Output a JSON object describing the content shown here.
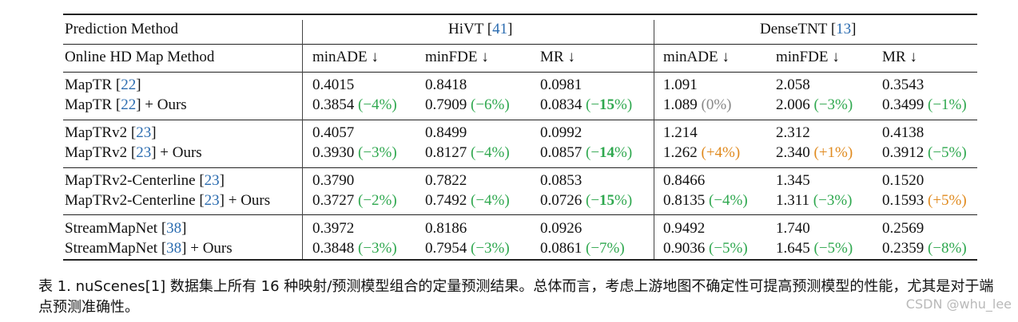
{
  "header": {
    "prediction_method": "Prediction Method",
    "hivt": "HiVT",
    "hivt_cite": "41",
    "densetnt": "DenseTNT",
    "densetnt_cite": "13",
    "online_map_method": "Online HD Map Method",
    "metrics": [
      "minADE ↓",
      "minFDE ↓",
      "MR ↓",
      "minADE ↓",
      "minFDE ↓",
      "MR ↓"
    ]
  },
  "groups": [
    {
      "base": {
        "name": "MapTR",
        "cite": "22",
        "suffix": "",
        "values": [
          "0.4015",
          "0.8418",
          "0.0981",
          "1.091",
          "2.058",
          "0.3543"
        ]
      },
      "ours": {
        "name": "MapTR",
        "cite": "22",
        "suffix": " + Ours",
        "values": [
          "0.3854",
          "0.7909",
          "0.0834",
          "1.089",
          "2.006",
          "0.3499"
        ],
        "deltas": [
          "(−4%)",
          "(−6%)",
          "(−15%)",
          "(0%)",
          "(−3%)",
          "(−1%)"
        ]
      }
    },
    {
      "base": {
        "name": "MapTRv2",
        "cite": "23",
        "suffix": "",
        "values": [
          "0.4057",
          "0.8499",
          "0.0992",
          "1.214",
          "2.312",
          "0.4138"
        ]
      },
      "ours": {
        "name": "MapTRv2",
        "cite": "23",
        "suffix": " + Ours",
        "values": [
          "0.3930",
          "0.8127",
          "0.0857",
          "1.262",
          "2.340",
          "0.3912"
        ],
        "deltas": [
          "(−3%)",
          "(−4%)",
          "(−14%)",
          "(+4%)",
          "(+1%)",
          "(−5%)"
        ]
      }
    },
    {
      "base": {
        "name": "MapTRv2-Centerline",
        "cite": "23",
        "suffix": "",
        "values": [
          "0.3790",
          "0.7822",
          "0.0853",
          "0.8466",
          "1.345",
          "0.1520"
        ]
      },
      "ours": {
        "name": "MapTRv2-Centerline",
        "cite": "23",
        "suffix": " + Ours",
        "values": [
          "0.3727",
          "0.7492",
          "0.0726",
          "0.8135",
          "1.311",
          "0.1593"
        ],
        "deltas": [
          "(−2%)",
          "(−4%)",
          "(−15%)",
          "(−4%)",
          "(−3%)",
          "(+5%)"
        ]
      }
    },
    {
      "base": {
        "name": "StreamMapNet",
        "cite": "38",
        "suffix": "",
        "values": [
          "0.3972",
          "0.8186",
          "0.0926",
          "0.9492",
          "1.740",
          "0.2569"
        ]
      },
      "ours": {
        "name": "StreamMapNet",
        "cite": "38",
        "suffix": " + Ours",
        "values": [
          "0.3848",
          "0.7954",
          "0.0861",
          "0.9036",
          "1.645",
          "0.2359"
        ],
        "deltas": [
          "(−3%)",
          "(−3%)",
          "(−7%)",
          "(−5%)",
          "(−5%)",
          "(−8%)"
        ]
      }
    }
  ],
  "caption": "表 1. nuScenes[1] 数据集上所有 16 种映射/预测模型组合的定量预测结果。总体而言，考虑上游地图不确定性可提高预测模型的性能，尤其是对于端点预测准确性。",
  "watermark": "CSDN @whu_lee",
  "colors": {
    "citation": "#2b6cb0",
    "improve": "#2fa84f",
    "worse": "#e08a1e",
    "neutral": "#888888"
  }
}
